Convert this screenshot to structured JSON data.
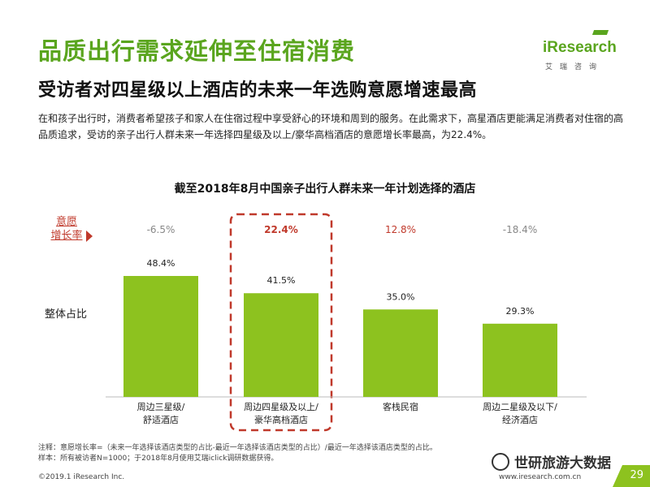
{
  "header": {
    "title": "品质出行需求延伸至住宿消费",
    "subtitle": "受访者对四星级以上酒店的未来一年选购意愿增速最高",
    "description": "在和孩子出行时，消费者希望孩子和家人在住宿过程中享受舒心的环境和周到的服务。在此需求下，高星酒店更能满足消费者对住宿的高品质追求，受访的亲子出行人群未来一年选择四星级及以上/豪华高档酒店的意愿增长率最高，为22.4%。"
  },
  "logo": {
    "brand": "iResearch",
    "sub": "艾瑞咨询"
  },
  "chart_labels": {
    "rate_label_line1": "意愿",
    "rate_label_line2": "增长率",
    "share_label": "整体占比"
  },
  "chart_data": {
    "type": "bar",
    "title": "截至2018年8月中国亲子出行人群未来一年计划选择的酒店",
    "categories": [
      "周边三星级/\n舒适酒店",
      "周边四星级及以上/\n豪华高档酒店",
      "客栈民宿",
      "周边二星级及以下/\n经济酒店"
    ],
    "values": [
      48.4,
      41.5,
      35.0,
      29.3
    ],
    "value_labels": [
      "48.4%",
      "41.5%",
      "35.0%",
      "29.3%"
    ],
    "growth_rates": [
      "-6.5%",
      "22.4%",
      "12.8%",
      "-18.4%"
    ],
    "highlight_index": 1,
    "ylim": [
      0,
      60
    ],
    "colors": {
      "bar": "#8dc21f",
      "highlight_box": "#c0392b",
      "positive_rate": "#c0392b",
      "negative_rate": "#888888"
    }
  },
  "footer": {
    "note1": "注释：意愿增长率=（未来一年选择该酒店类型的占比-最近一年选择该酒店类型的占比）/最近一年选择该酒店类型的占比。",
    "note2": "样本：所有被访者N=1000；于2018年8月使用艾瑞iclick调研数据获得。",
    "copyright": "©2019.1 iResearch Inc.",
    "url": "www.iresearch.com.cn",
    "page": "29",
    "watermark": "世研旅游大数据"
  }
}
